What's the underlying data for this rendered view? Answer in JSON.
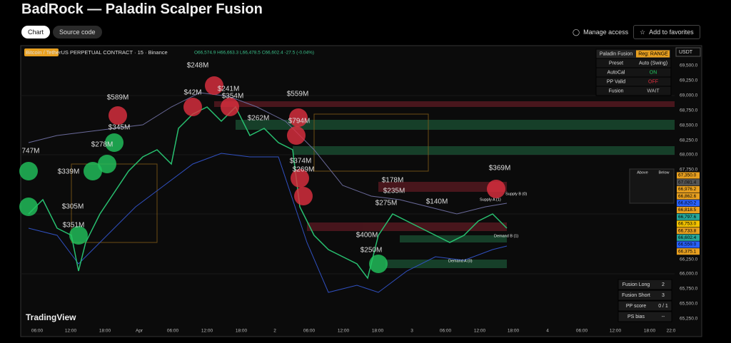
{
  "header": {
    "title": "BadRock — Paladin Scalper Fusion",
    "tabs": [
      "Chart",
      "Source code"
    ],
    "manage_access": "Manage access",
    "add_to_favorites": "Add to favorites"
  },
  "chart": {
    "symbol": "Bitcoin / TetherUS PERPETUAL CONTRACT · 15 · Binance",
    "ohlc": "O66,574.9 H66,663.3 L66,478.5 C66,602.4 -27.5 (-0.04%)",
    "currency": "USDT",
    "watermark": "TradingView",
    "price_axis": [
      "69,500.0",
      "69,250.0",
      "69,000.0",
      "68,750.0",
      "68,500.0",
      "68,250.0",
      "68,000.0",
      "67,750.0",
      "66,250.0",
      "66,000.0",
      "65,750.0",
      "65,500.0",
      "65,250.0"
    ],
    "price_tags": [
      "67,350.0",
      "67,081.4",
      "66,976.2",
      "66,862.6",
      "66,820.2",
      "66,818.5",
      "66,797.6",
      "66,753.0",
      "66,733.8",
      "66,602.4",
      "66,559.0",
      "66,375.1"
    ],
    "time_axis": [
      "06:00",
      "12:00",
      "18:00",
      "Apr",
      "06:00",
      "12:00",
      "18:00",
      "2",
      "06:00",
      "12:00",
      "18:00",
      "3",
      "06:00",
      "12:00",
      "18:00",
      "4",
      "06:00",
      "12:00",
      "18:00",
      "22:0"
    ],
    "bubbles": [
      "$248M",
      "$589M",
      "$241M",
      "$42M",
      "$354M",
      "$559M",
      "$262M",
      "$794M",
      "$345M",
      "$278M",
      "747M",
      "$339M",
      "$305M",
      "$351M",
      "$374M",
      "$269M",
      "$178M",
      "$235M",
      "$275M",
      "$140M",
      "$369M",
      "$400M",
      "$250M"
    ],
    "zones": [
      "Supply B (0)",
      "Supply A (1)",
      "Demand B (1)",
      "Demand A (0)"
    ],
    "status_panel": [
      [
        "Paladin Fusion",
        "Reg: RANGE"
      ],
      [
        "Preset",
        "Auto (Swing)"
      ],
      [
        "AutoCal",
        "ON"
      ],
      [
        "PP Valid",
        "OFF"
      ],
      [
        "Fusion",
        "WAIT"
      ]
    ],
    "mini_panel": [
      "Above",
      "Below"
    ],
    "stats_panel": [
      [
        "Fusion Long",
        "2"
      ],
      [
        "Fusion Short",
        "3"
      ],
      [
        "PP score",
        "0 / 1"
      ],
      [
        "PS bias",
        "--"
      ]
    ]
  }
}
